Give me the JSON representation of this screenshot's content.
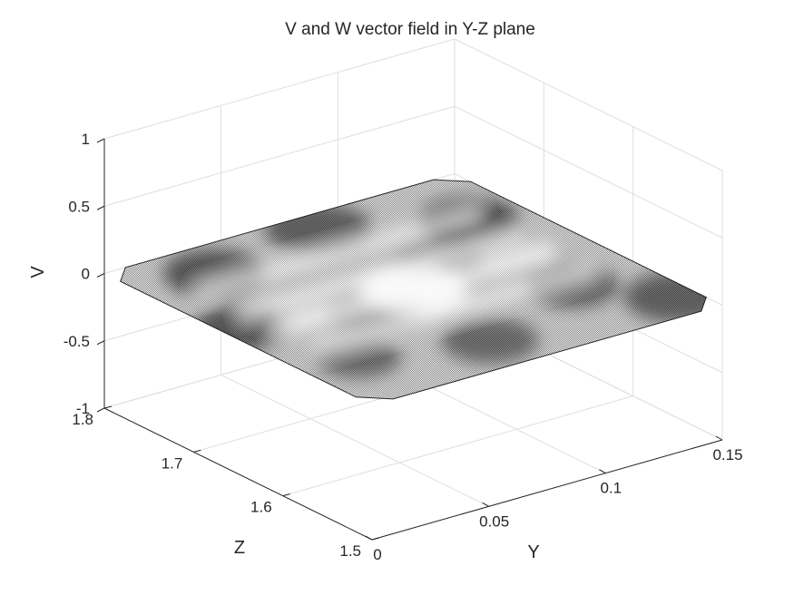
{
  "chart_data": {
    "type": "surface",
    "title": "V and W vector field in Y-Z plane",
    "xlabel": "Y",
    "ylabel": "Z",
    "zlabel": "V",
    "axes": {
      "y_ticks": [
        "0",
        "0.05",
        "0.1",
        "0.15"
      ],
      "z_ticks": [
        "1.5",
        "1.6",
        "1.7",
        "1.8"
      ],
      "v_ticks": [
        "-1",
        "-0.5",
        "0",
        "0.5",
        "1"
      ]
    },
    "xlim": [
      0,
      0.15
    ],
    "zlim": [
      1.5,
      1.8
    ],
    "vlim": [
      -1,
      1
    ],
    "surface": {
      "y_range": [
        0,
        0.15
      ],
      "z_range": [
        1.5,
        1.8
      ],
      "v_approx": 0,
      "colormap": "gray",
      "mesh": "dense"
    },
    "grid": true,
    "view": "3d"
  }
}
